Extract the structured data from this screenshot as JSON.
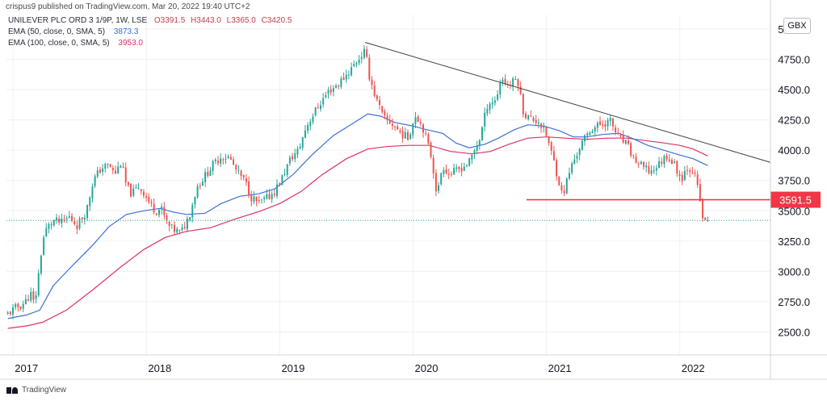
{
  "header": {
    "published_by": "crispus9 published on TradingView.com, Mar 20, 2022 19:40 UTC+2",
    "currency": "GBX"
  },
  "legend": {
    "symbol": "UNILEVER PLC ORD 3 1/9P, 1W, LSE",
    "ohlc": [
      "O3391.5",
      "H3443.0",
      "L3365.0",
      "C3420.5"
    ],
    "ema50_label": "EMA (50, close, 0, SMA, 5)",
    "ema50_value": "3873.3",
    "ema100_label": "EMA (100, close, 0, SMA, 5)",
    "ema100_value": "3953.0"
  },
  "footer": {
    "brand": "TradingView"
  },
  "colors": {
    "up": "#26a69a",
    "down": "#ef5350",
    "ema50": "#3c6fd8",
    "ema100": "#e0306a",
    "trendline": "#3d3d3d",
    "support": "#f23645",
    "last_price": "#26a69a",
    "grid": "#eef0f3"
  },
  "chart_data": {
    "type": "candlestick",
    "x_unit": "year",
    "y_unit": "GBX",
    "xlim": [
      2016.95,
      2022.68
    ],
    "ylim": [
      2310,
      5120
    ],
    "grid": true,
    "x_ticks": [
      2017,
      2018,
      2019,
      2020,
      2021,
      2022
    ],
    "x_tick_labels": [
      "2017",
      "2018",
      "2019",
      "2020",
      "2021",
      "2022"
    ],
    "y_ticks": [
      2500,
      2750,
      3000,
      3250,
      3500,
      3750,
      4000,
      4250,
      4500,
      4750,
      5000
    ],
    "y_tick_labels": [
      "2500.0",
      "2750.0",
      "3000.0",
      "3250.0",
      "3500.0",
      "3750.0",
      "4000.0",
      "4250.0",
      "4500.0",
      "4750.0",
      "5000.0"
    ],
    "closes": [
      [
        2016.96,
        2650
      ],
      [
        2017.02,
        2700
      ],
      [
        2017.06,
        2720
      ],
      [
        2017.1,
        2760
      ],
      [
        2017.13,
        2820
      ],
      [
        2017.16,
        2720
      ],
      [
        2017.2,
        3050
      ],
      [
        2017.22,
        3250
      ],
      [
        2017.25,
        3350
      ],
      [
        2017.3,
        3420
      ],
      [
        2017.36,
        3400
      ],
      [
        2017.42,
        3450
      ],
      [
        2017.48,
        3380
      ],
      [
        2017.55,
        3500
      ],
      [
        2017.6,
        3750
      ],
      [
        2017.66,
        3850
      ],
      [
        2017.72,
        3880
      ],
      [
        2017.76,
        3800
      ],
      [
        2017.81,
        3900
      ],
      [
        2017.85,
        3700
      ],
      [
        2017.89,
        3640
      ],
      [
        2017.94,
        3700
      ],
      [
        2017.98,
        3650
      ],
      [
        2018.03,
        3550
      ],
      [
        2018.07,
        3500
      ],
      [
        2018.11,
        3520
      ],
      [
        2018.16,
        3380
      ],
      [
        2018.21,
        3340
      ],
      [
        2018.26,
        3320
      ],
      [
        2018.32,
        3460
      ],
      [
        2018.38,
        3700
      ],
      [
        2018.44,
        3790
      ],
      [
        2018.5,
        3880
      ],
      [
        2018.56,
        3950
      ],
      [
        2018.62,
        3940
      ],
      [
        2018.68,
        3820
      ],
      [
        2018.74,
        3740
      ],
      [
        2018.78,
        3620
      ],
      [
        2018.84,
        3560
      ],
      [
        2018.9,
        3600
      ],
      [
        2018.96,
        3660
      ],
      [
        2019.02,
        3780
      ],
      [
        2019.08,
        3930
      ],
      [
        2019.14,
        4000
      ],
      [
        2019.2,
        4200
      ],
      [
        2019.28,
        4350
      ],
      [
        2019.36,
        4480
      ],
      [
        2019.44,
        4550
      ],
      [
        2019.52,
        4650
      ],
      [
        2019.58,
        4740
      ],
      [
        2019.64,
        4820
      ],
      [
        2019.67,
        4620
      ],
      [
        2019.72,
        4430
      ],
      [
        2019.78,
        4260
      ],
      [
        2019.84,
        4220
      ],
      [
        2019.9,
        4150
      ],
      [
        2019.96,
        4100
      ],
      [
        2020.02,
        4300
      ],
      [
        2020.08,
        4170
      ],
      [
        2020.14,
        3930
      ],
      [
        2020.18,
        3620
      ],
      [
        2020.22,
        3880
      ],
      [
        2020.27,
        3800
      ],
      [
        2020.34,
        3840
      ],
      [
        2020.42,
        3900
      ],
      [
        2020.5,
        4100
      ],
      [
        2020.56,
        4390
      ],
      [
        2020.62,
        4410
      ],
      [
        2020.66,
        4600
      ],
      [
        2020.72,
        4530
      ],
      [
        2020.78,
        4600
      ],
      [
        2020.83,
        4300
      ],
      [
        2020.88,
        4260
      ],
      [
        2020.94,
        4240
      ],
      [
        2021.0,
        4120
      ],
      [
        2021.06,
        3890
      ],
      [
        2021.12,
        3620
      ],
      [
        2021.18,
        3850
      ],
      [
        2021.26,
        4050
      ],
      [
        2021.34,
        4180
      ],
      [
        2021.42,
        4220
      ],
      [
        2021.48,
        4240
      ],
      [
        2021.54,
        4100
      ],
      [
        2021.6,
        4050
      ],
      [
        2021.66,
        3920
      ],
      [
        2021.72,
        3860
      ],
      [
        2021.78,
        3820
      ],
      [
        2021.84,
        3880
      ],
      [
        2021.9,
        3960
      ],
      [
        2021.96,
        3880
      ],
      [
        2022.01,
        3760
      ],
      [
        2022.05,
        3860
      ],
      [
        2022.1,
        3840
      ],
      [
        2022.14,
        3660
      ],
      [
        2022.18,
        3390
      ],
      [
        2022.21,
        3420
      ]
    ],
    "ema50": [
      [
        2016.96,
        2610
      ],
      [
        2017.1,
        2640
      ],
      [
        2017.2,
        2680
      ],
      [
        2017.3,
        2880
      ],
      [
        2017.42,
        3020
      ],
      [
        2017.6,
        3220
      ],
      [
        2017.72,
        3370
      ],
      [
        2017.85,
        3470
      ],
      [
        2017.98,
        3500
      ],
      [
        2018.1,
        3520
      ],
      [
        2018.2,
        3490
      ],
      [
        2018.3,
        3470
      ],
      [
        2018.44,
        3480
      ],
      [
        2018.56,
        3560
      ],
      [
        2018.7,
        3620
      ],
      [
        2018.84,
        3640
      ],
      [
        2018.96,
        3680
      ],
      [
        2019.1,
        3800
      ],
      [
        2019.24,
        3960
      ],
      [
        2019.4,
        4120
      ],
      [
        2019.56,
        4230
      ],
      [
        2019.66,
        4300
      ],
      [
        2019.76,
        4280
      ],
      [
        2019.86,
        4230
      ],
      [
        2020.0,
        4200
      ],
      [
        2020.1,
        4170
      ],
      [
        2020.22,
        4140
      ],
      [
        2020.32,
        4060
      ],
      [
        2020.42,
        4020
      ],
      [
        2020.54,
        4050
      ],
      [
        2020.64,
        4100
      ],
      [
        2020.76,
        4170
      ],
      [
        2020.86,
        4210
      ],
      [
        2020.98,
        4200
      ],
      [
        2021.1,
        4160
      ],
      [
        2021.2,
        4110
      ],
      [
        2021.3,
        4110
      ],
      [
        2021.42,
        4130
      ],
      [
        2021.54,
        4140
      ],
      [
        2021.64,
        4100
      ],
      [
        2021.76,
        4040
      ],
      [
        2021.88,
        4000
      ],
      [
        2022.0,
        3960
      ],
      [
        2022.1,
        3930
      ],
      [
        2022.21,
        3873
      ]
    ],
    "ema100": [
      [
        2016.96,
        2530
      ],
      [
        2017.1,
        2550
      ],
      [
        2017.22,
        2580
      ],
      [
        2017.4,
        2680
      ],
      [
        2017.6,
        2850
      ],
      [
        2017.8,
        3030
      ],
      [
        2017.98,
        3180
      ],
      [
        2018.14,
        3280
      ],
      [
        2018.3,
        3330
      ],
      [
        2018.48,
        3360
      ],
      [
        2018.66,
        3430
      ],
      [
        2018.86,
        3500
      ],
      [
        2019.0,
        3560
      ],
      [
        2019.16,
        3660
      ],
      [
        2019.32,
        3800
      ],
      [
        2019.5,
        3930
      ],
      [
        2019.66,
        4010
      ],
      [
        2019.8,
        4030
      ],
      [
        2019.96,
        4040
      ],
      [
        2020.12,
        4040
      ],
      [
        2020.28,
        3990
      ],
      [
        2020.44,
        3970
      ],
      [
        2020.58,
        3990
      ],
      [
        2020.72,
        4050
      ],
      [
        2020.86,
        4100
      ],
      [
        2021.0,
        4110
      ],
      [
        2021.14,
        4100
      ],
      [
        2021.3,
        4090
      ],
      [
        2021.46,
        4100
      ],
      [
        2021.6,
        4100
      ],
      [
        2021.74,
        4080
      ],
      [
        2021.88,
        4060
      ],
      [
        2022.0,
        4040
      ],
      [
        2022.1,
        4010
      ],
      [
        2022.21,
        3953
      ]
    ],
    "trendline": [
      [
        2019.64,
        4890
      ],
      [
        2022.68,
        3900
      ]
    ],
    "support_level": 3591.5,
    "support_label": "3591.5",
    "support_start": 2020.85,
    "last_price": 3420.5
  }
}
